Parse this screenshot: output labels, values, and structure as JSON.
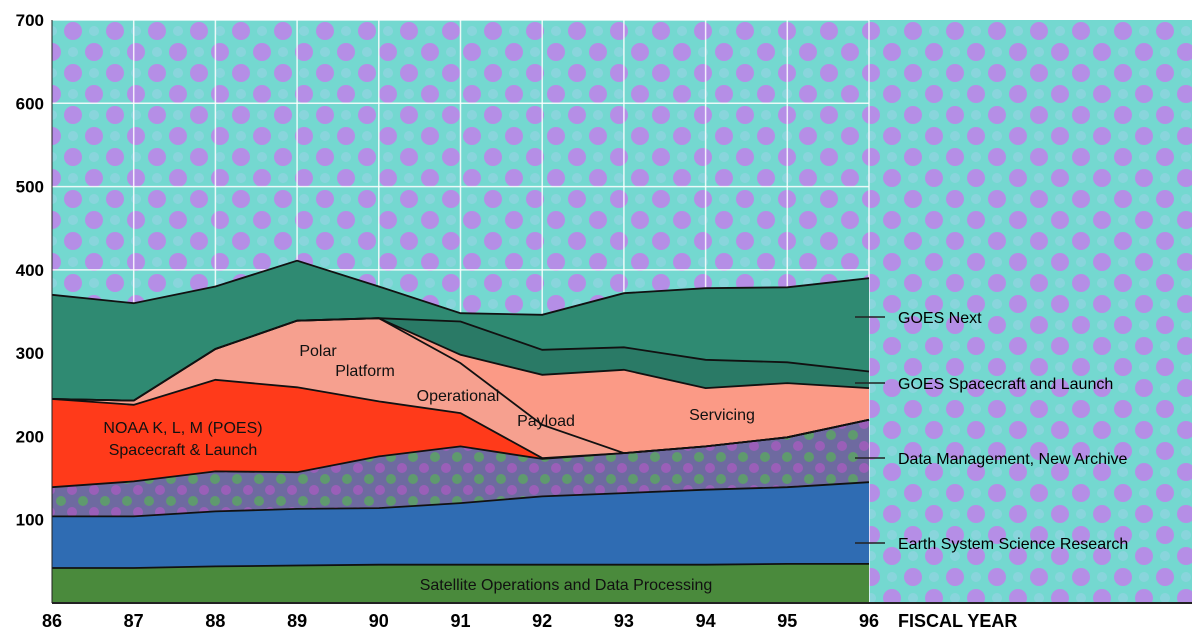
{
  "chart_data": {
    "type": "area",
    "title": "",
    "xlabel": "FISCAL YEAR",
    "ylabel": "",
    "x": [
      "86",
      "87",
      "88",
      "89",
      "90",
      "91",
      "92",
      "93",
      "94",
      "95",
      "96"
    ],
    "yticks": [
      "100",
      "200",
      "300",
      "400",
      "500",
      "600",
      "700"
    ],
    "ylim": [
      0,
      700
    ],
    "grid": true,
    "colors": {
      "background_a": "#6fd6d2",
      "background_b": "#b98ee8",
      "goes_next": "#2f8a72",
      "goes_spacecraft": "#2a7a66",
      "servicing": "#fb9a86",
      "payload": "#fb9a86",
      "polar": "#f6a08f",
      "noaa": "#ff3a1a",
      "data_mgmt": "#7c5aa0",
      "earth_system": "#2f6cb3",
      "satellite_ops": "#4a8a3c"
    },
    "series": [
      {
        "name": "Satellite Operations and Data Processing",
        "values": [
          42,
          42,
          44,
          45,
          46,
          46,
          46,
          46,
          46,
          47,
          47
        ]
      },
      {
        "name": "Earth System Science Research",
        "values": [
          62,
          62,
          66,
          68,
          68,
          74,
          82,
          86,
          90,
          92,
          98
        ]
      },
      {
        "name": "Data Management, New Archive",
        "values": [
          35,
          42,
          48,
          44,
          62,
          68,
          45,
          48,
          52,
          60,
          75
        ]
      },
      {
        "name": "NOAA K, L, M (POES) Spacecraft & Launch",
        "values": [
          106,
          92,
          110,
          102,
          66,
          40,
          1,
          0,
          0,
          0,
          0
        ]
      },
      {
        "name": "Polar Platform Operational Payload",
        "values": [
          0,
          5,
          37,
          80,
          100,
          60,
          40,
          0,
          0,
          0,
          0
        ]
      },
      {
        "name": "Servicing",
        "values": [
          0,
          0,
          0,
          0,
          0,
          10,
          60,
          100,
          70,
          65,
          38
        ]
      },
      {
        "name": "GOES Spacecraft and Launch",
        "values": [
          0,
          0,
          0,
          0,
          0,
          40,
          30,
          27,
          34,
          25,
          20
        ]
      },
      {
        "name": "GOES Next",
        "values": [
          125,
          117,
          75,
          72,
          38,
          10,
          42,
          65,
          86,
          90,
          112
        ]
      }
    ],
    "annotations": {
      "noaa": [
        "NOAA K, L, M (POES)",
        "Spacecraft & Launch"
      ],
      "polar": [
        "Polar",
        "Platform",
        "Operational",
        "Payload"
      ],
      "servicing": "Servicing",
      "satellite_ops": "Satellite Operations and Data Processing"
    },
    "right_labels": [
      "GOES Next",
      "GOES Spacecraft and Launch",
      "Data Management, New Archive",
      "Earth System Science Research"
    ]
  }
}
